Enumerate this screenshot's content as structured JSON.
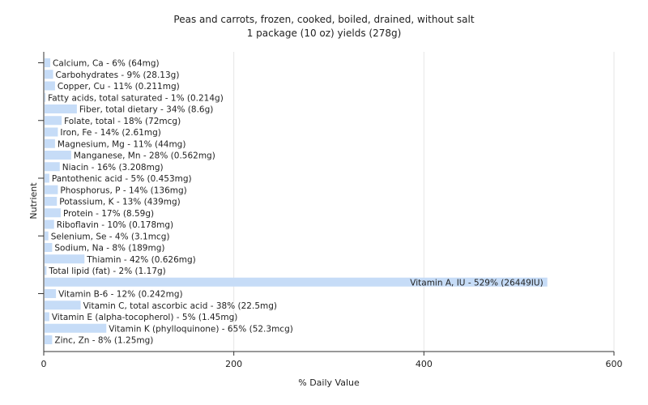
{
  "chart_data": {
    "type": "bar",
    "orientation": "horizontal",
    "title": "Peas and carrots, frozen, cooked, boiled, drained, without salt",
    "subtitle": "1 package (10 oz) yields (278g)",
    "xlabel": "% Daily Value",
    "ylabel": "Nutrient",
    "xlim": [
      0,
      600
    ],
    "xticks": [
      "0",
      "200",
      "400",
      "600"
    ],
    "grid": true,
    "bar_color": "#c6dcf7",
    "categories": [
      "Calcium, Ca",
      "Carbohydrates",
      "Copper, Cu",
      "Fatty acids, total saturated",
      "Fiber, total dietary",
      "Folate, total",
      "Iron, Fe",
      "Magnesium, Mg",
      "Manganese, Mn",
      "Niacin",
      "Pantothenic acid",
      "Phosphorus, P",
      "Potassium, K",
      "Protein",
      "Riboflavin",
      "Selenium, Se",
      "Sodium, Na",
      "Thiamin",
      "Total lipid (fat)",
      "Vitamin A, IU",
      "Vitamin B-6",
      "Vitamin C, total ascorbic acid",
      "Vitamin E (alpha-tocopherol)",
      "Vitamin K (phylloquinone)",
      "Zinc, Zn"
    ],
    "values": [
      6,
      9,
      11,
      1,
      34,
      18,
      14,
      11,
      28,
      16,
      5,
      14,
      13,
      17,
      10,
      4,
      8,
      42,
      2,
      529,
      12,
      38,
      5,
      65,
      8
    ],
    "labels": [
      "Calcium, Ca - 6% (64mg)",
      "Carbohydrates - 9% (28.13g)",
      "Copper, Cu - 11% (0.211mg)",
      "Fatty acids, total saturated - 1% (0.214g)",
      "Fiber, total dietary - 34% (8.6g)",
      "Folate, total - 18% (72mcg)",
      "Iron, Fe - 14% (2.61mg)",
      "Magnesium, Mg - 11% (44mg)",
      "Manganese, Mn - 28% (0.562mg)",
      "Niacin - 16% (3.208mg)",
      "Pantothenic acid - 5% (0.453mg)",
      "Phosphorus, P - 14% (136mg)",
      "Potassium, K - 13% (439mg)",
      "Protein - 17% (8.59g)",
      "Riboflavin - 10% (0.178mg)",
      "Selenium, Se - 4% (3.1mcg)",
      "Sodium, Na - 8% (189mg)",
      "Thiamin - 42% (0.626mg)",
      "Total lipid (fat) - 2% (1.17g)",
      "Vitamin A, IU - 529% (26449IU)",
      "Vitamin B-6 - 12% (0.242mg)",
      "Vitamin C, total ascorbic acid - 38% (22.5mg)",
      "Vitamin E (alpha-tocopherol) - 5% (1.45mg)",
      "Vitamin K (phylloquinone) - 65% (52.3mcg)",
      "Zinc, Zn - 8% (1.25mg)"
    ]
  }
}
